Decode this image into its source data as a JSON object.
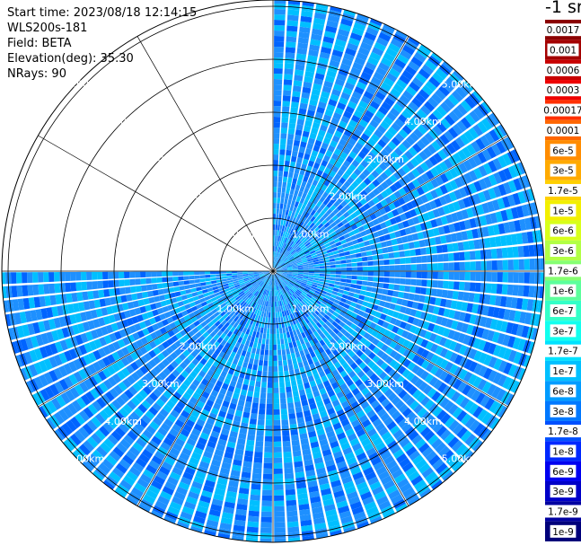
{
  "info": {
    "start_time": "Start time: 2023/08/18 12:14:15",
    "instrument": "WLS200s-181",
    "field": "Field: BETA",
    "elevation": "Elevation(deg): 35.30",
    "nrays": "NRays: 90"
  },
  "colorbar": {
    "unit": "-1 sr",
    "labels": [
      "0.0017",
      "0.001",
      "0.0006",
      "0.0003",
      "0.00017",
      "0.0001",
      "6e-5",
      "3e-5",
      "1.7e-5",
      "1e-5",
      "6e-6",
      "3e-6",
      "1.7e-6",
      "1e-6",
      "6e-7",
      "3e-7",
      "1.7e-7",
      "1e-7",
      "6e-8",
      "3e-8",
      "1.7e-8",
      "1e-8",
      "6e-9",
      "3e-9",
      "1.7e-9",
      "1e-9"
    ],
    "colors": [
      "#8b0000",
      "#a30000",
      "#c80000",
      "#ee0000",
      "#ff3000",
      "#ff6600",
      "#ff8c00",
      "#ffaa00",
      "#ffd000",
      "#f2ef00",
      "#d8ff1a",
      "#b2ff45",
      "#86ff72",
      "#5cff9c",
      "#33ffc8",
      "#12ffee",
      "#00e2ff",
      "#00c0ff",
      "#009cff",
      "#0078ff",
      "#0050ff",
      "#0028ff",
      "#0000f0",
      "#0000c8",
      "#0000a0",
      "#00007a"
    ]
  },
  "chart_data": {
    "type": "heatmap",
    "projection": "polar PPI scan",
    "field": "BETA",
    "rays": 90,
    "sector_deg": [
      0,
      270
    ],
    "missing_sector_deg": [
      270,
      360
    ],
    "range_labels": [
      "1.00km",
      "2.00km",
      "3.00km",
      "4.00km",
      "5.00km"
    ],
    "ring_values_km": [
      1,
      2,
      3,
      4,
      5
    ],
    "value_range": [
      1e-09,
      0.0017
    ],
    "dominant_colors": [
      "#1e90ff",
      "#00bfff",
      "#0064ff"
    ],
    "grid": true
  }
}
